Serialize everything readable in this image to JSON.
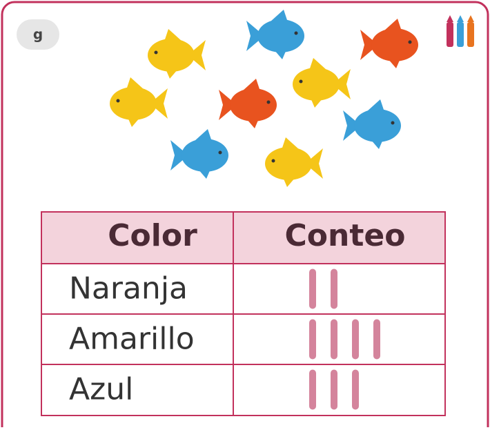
{
  "badge": "g",
  "table": {
    "header": [
      "Color",
      "Conteo"
    ],
    "rows": [
      [
        "Naranja",
        2
      ],
      [
        "Amarillo",
        4
      ],
      [
        "Azul",
        3
      ]
    ]
  }
}
